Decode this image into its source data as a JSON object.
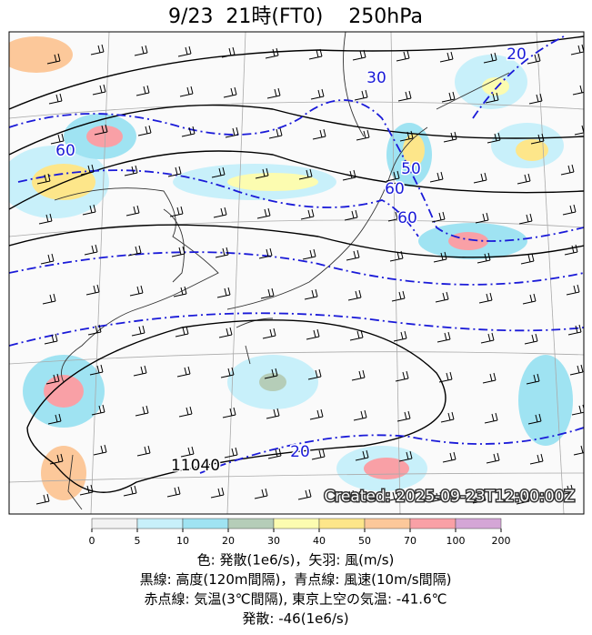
{
  "header": {
    "title": "9/23  21時(FT0)    250hPa"
  },
  "map": {
    "contour_labels": [
      "60",
      "30",
      "50",
      "60",
      "60",
      "20",
      "20",
      "11040"
    ],
    "created": "Created: 2025-09-23T12:00:00Z"
  },
  "colorbar": {
    "ticks": [
      0,
      5,
      10,
      20,
      30,
      40,
      50,
      70,
      100,
      200
    ],
    "colors": [
      "#f2f2f2",
      "#c8f0fa",
      "#9fe3f2",
      "#b5cdb8",
      "#fcfcb0",
      "#fde68a",
      "#fcc89a",
      "#f9a0a6",
      "#d4a6d6"
    ]
  },
  "caption": [
    "色: 発散(1e6/s)，矢羽: 風(m/s)",
    "黒線: 高度(120m間隔)，青点線: 風速(10m/s間隔)",
    "赤点線: 気温(3℃間隔), 東京上空の気温: -41.6℃",
    "発散: -46(1e6/s)"
  ]
}
